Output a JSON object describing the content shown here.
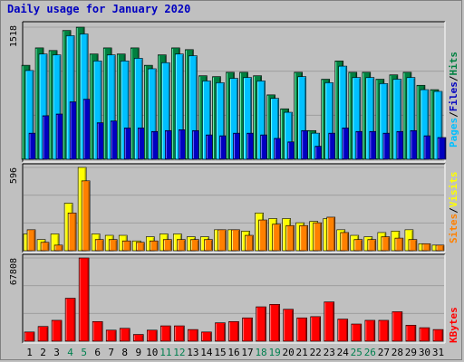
{
  "colors": {
    "background": "#c0c0c0",
    "hits": "#008040",
    "files": "#00c0ff",
    "pages": "#0000c0",
    "visits": "#ffff00",
    "sites": "#ff8000",
    "kbytes": "#ff0000",
    "title": "#0000c0",
    "day_normal": "#000000",
    "day_weekend": "#00804f"
  },
  "legend_words": {
    "hits": "Hits",
    "files": "Files",
    "pages": "Pages",
    "visits": "Visits",
    "sites": "Sites",
    "kbytes": "KBytes",
    "separator": "/"
  },
  "chart_data": {
    "type": "bar",
    "title": "Daily usage for January 2020",
    "categories": [
      "1",
      "2",
      "3",
      "4",
      "5",
      "6",
      "7",
      "8",
      "9",
      "10",
      "11",
      "12",
      "13",
      "14",
      "15",
      "16",
      "17",
      "18",
      "19",
      "20",
      "21",
      "22",
      "23",
      "24",
      "25",
      "26",
      "27",
      "28",
      "29",
      "30",
      "31"
    ],
    "weekend_days": [
      "4",
      "5",
      "11",
      "12",
      "18",
      "19",
      "25",
      "26"
    ],
    "panels": [
      {
        "id": "hits_files_pages",
        "ymax": 1518,
        "ymax_label": "1518",
        "series": [
          {
            "name": "Hits",
            "values": [
              1080,
              1280,
              1250,
              1480,
              1518,
              1210,
              1280,
              1210,
              1280,
              1080,
              1200,
              1280,
              1260,
              960,
              950,
              1000,
              1000,
              960,
              740,
              580,
              1000,
              330,
              920,
              1130,
              1000,
              1000,
              920,
              970,
              1000,
              850,
              800
            ]
          },
          {
            "name": "Files",
            "values": [
              1020,
              1210,
              1200,
              1420,
              1440,
              1130,
              1200,
              1130,
              1160,
              1040,
              1110,
              1210,
              1190,
              900,
              880,
              930,
              940,
              900,
              700,
              540,
              950,
              300,
              880,
              1070,
              940,
              940,
              870,
              920,
              940,
              800,
              780
            ]
          },
          {
            "name": "Pages",
            "values": [
              300,
              500,
              520,
              660,
              690,
              420,
              440,
              360,
              360,
              320,
              330,
              340,
              330,
              280,
              270,
              300,
              300,
              280,
              240,
              200,
              330,
              150,
              300,
              360,
              320,
              320,
              300,
              320,
              330,
              270,
              250
            ]
          }
        ]
      },
      {
        "id": "visits_sites",
        "ymax": 596,
        "ymax_label": "596",
        "series": [
          {
            "name": "Visits",
            "values": [
              120,
              80,
              120,
              340,
              596,
              120,
              110,
              110,
              70,
              100,
              120,
              120,
              100,
              100,
              150,
              150,
              140,
              270,
              230,
              230,
              200,
              210,
              230,
              150,
              110,
              100,
              130,
              140,
              150,
              50,
              40
            ]
          },
          {
            "name": "Sites",
            "values": [
              150,
              60,
              40,
              270,
              500,
              80,
              80,
              70,
              60,
              70,
              80,
              80,
              80,
              80,
              150,
              150,
              110,
              220,
              190,
              180,
              180,
              200,
              240,
              130,
              80,
              80,
              100,
              90,
              80,
              50,
              40
            ]
          }
        ]
      },
      {
        "id": "kbytes",
        "ymax": 67808,
        "ymax_label": "67808",
        "series": [
          {
            "name": "KBytes",
            "values": [
              7500,
              12000,
              17000,
              35000,
              67808,
              16000,
              9000,
              10500,
              5500,
              9000,
              12500,
              12500,
              9500,
              7500,
              15000,
              16000,
              19000,
              28000,
              30000,
              26000,
              19000,
              20000,
              32000,
              18000,
              14000,
              17000,
              17000,
              24000,
              13000,
              11000,
              9500
            ]
          }
        ]
      }
    ]
  }
}
